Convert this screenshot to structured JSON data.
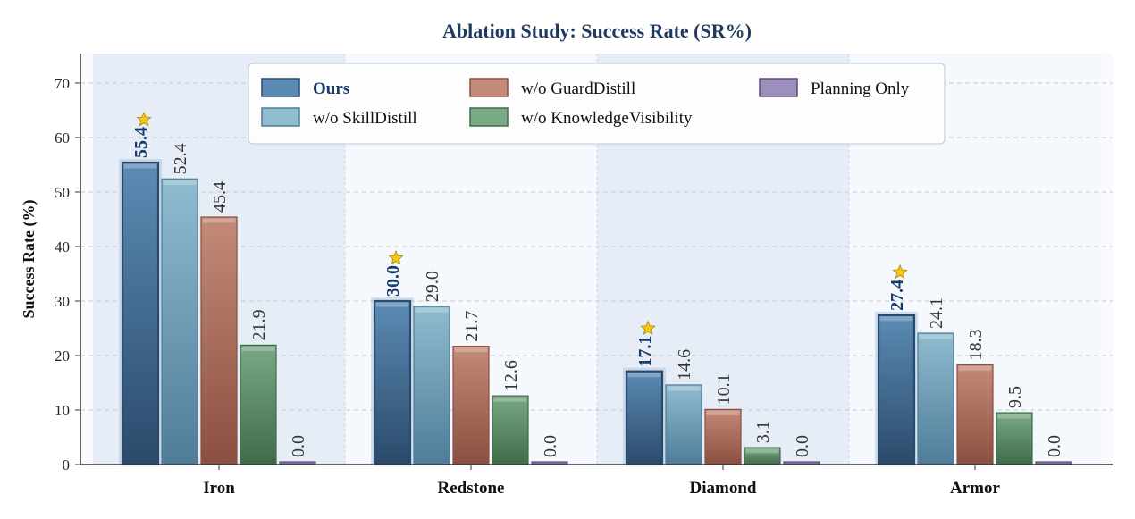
{
  "chart_data": {
    "type": "bar",
    "title": "Ablation Study: Success Rate (SR%)",
    "xlabel": "",
    "ylabel": "Success Rate (%)",
    "ylim": [
      0,
      75.4
    ],
    "yticks": [
      0,
      10,
      20,
      30,
      40,
      50,
      60,
      70
    ],
    "grid": true,
    "legend_placement": "top-center",
    "categories": [
      "Iron",
      "Redstone",
      "Diamond",
      "Armor"
    ],
    "series": [
      {
        "name": "Ours",
        "values": [
          55.4,
          30.0,
          17.1,
          27.4
        ],
        "color": "#5b8bb4",
        "edge": "#2b4a6b",
        "highlight": true
      },
      {
        "name": "w/o SkillDistill",
        "values": [
          52.4,
          29.0,
          14.6,
          24.1
        ],
        "color": "#8fbccf",
        "edge": "#4f7c98"
      },
      {
        "name": "w/o GuardDistill",
        "values": [
          45.4,
          21.7,
          10.1,
          18.3
        ],
        "color": "#c48a78",
        "edge": "#8a4f40"
      },
      {
        "name": "w/o KnowledgeVisibility",
        "values": [
          21.9,
          12.6,
          3.1,
          9.5
        ],
        "color": "#79a985",
        "edge": "#3f6b4b"
      },
      {
        "name": "Planning Only",
        "values": [
          0.0,
          0.0,
          0.0,
          0.0
        ],
        "color": "#9d8fbb",
        "edge": "#5a4c7a"
      }
    ],
    "best_marker": "star-icon",
    "colors": {
      "title": "#1f3a5f",
      "best_label": "#163a6b",
      "star": "#f5c518",
      "band": "#e6edf6",
      "band_alt": "#f5f8fc"
    }
  }
}
